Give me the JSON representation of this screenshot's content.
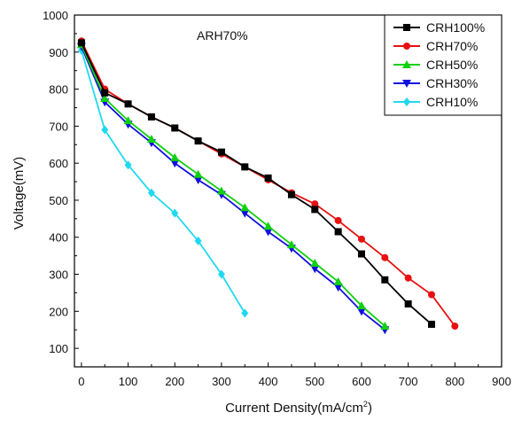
{
  "chart_data": {
    "type": "line",
    "annotation": "ARH70%",
    "xlabel": "Current Density(mA/cm",
    "xlabel_superscript": "2",
    "xlabel_close": ")",
    "ylabel": "Voltage(mV)",
    "xlim": [
      -15,
      900
    ],
    "ylim": [
      50,
      1000
    ],
    "xticks": [
      0,
      100,
      200,
      300,
      400,
      500,
      600,
      700,
      800,
      900
    ],
    "yticks": [
      100,
      200,
      300,
      400,
      500,
      600,
      700,
      800,
      900,
      1000
    ],
    "legend_position": "top-right",
    "series": [
      {
        "name": "CRH100%",
        "color": "#000000",
        "marker": "square",
        "x": [
          0,
          50,
          100,
          150,
          200,
          250,
          300,
          350,
          400,
          450,
          500,
          550,
          600,
          650,
          700,
          750
        ],
        "y": [
          925,
          790,
          760,
          725,
          695,
          660,
          630,
          590,
          560,
          515,
          475,
          415,
          355,
          285,
          220,
          165
        ]
      },
      {
        "name": "CRH70%",
        "color": "#e81010",
        "marker": "circle",
        "x": [
          0,
          50,
          100,
          150,
          200,
          250,
          300,
          350,
          400,
          450,
          500,
          550,
          600,
          650,
          700,
          750,
          800
        ],
        "y": [
          930,
          800,
          760,
          725,
          695,
          660,
          625,
          590,
          555,
          520,
          490,
          445,
          395,
          345,
          290,
          245,
          160
        ]
      },
      {
        "name": "CRH50%",
        "color": "#10d010",
        "marker": "triangle-up",
        "x": [
          0,
          50,
          100,
          150,
          200,
          250,
          300,
          350,
          400,
          450,
          500,
          550,
          600,
          650
        ],
        "y": [
          920,
          775,
          715,
          665,
          615,
          570,
          525,
          480,
          430,
          380,
          330,
          280,
          215,
          160
        ]
      },
      {
        "name": "CRH30%",
        "color": "#1010e0",
        "marker": "triangle-down",
        "x": [
          0,
          50,
          100,
          150,
          200,
          250,
          300,
          350,
          400,
          450,
          500,
          550,
          600,
          650
        ],
        "y": [
          915,
          765,
          705,
          655,
          600,
          555,
          515,
          465,
          415,
          370,
          315,
          265,
          200,
          150
        ]
      },
      {
        "name": "CRH10%",
        "color": "#20d8f0",
        "marker": "diamond",
        "x": [
          0,
          50,
          100,
          150,
          200,
          250,
          300,
          350
        ],
        "y": [
          905,
          690,
          595,
          520,
          465,
          390,
          300,
          195
        ]
      }
    ]
  }
}
